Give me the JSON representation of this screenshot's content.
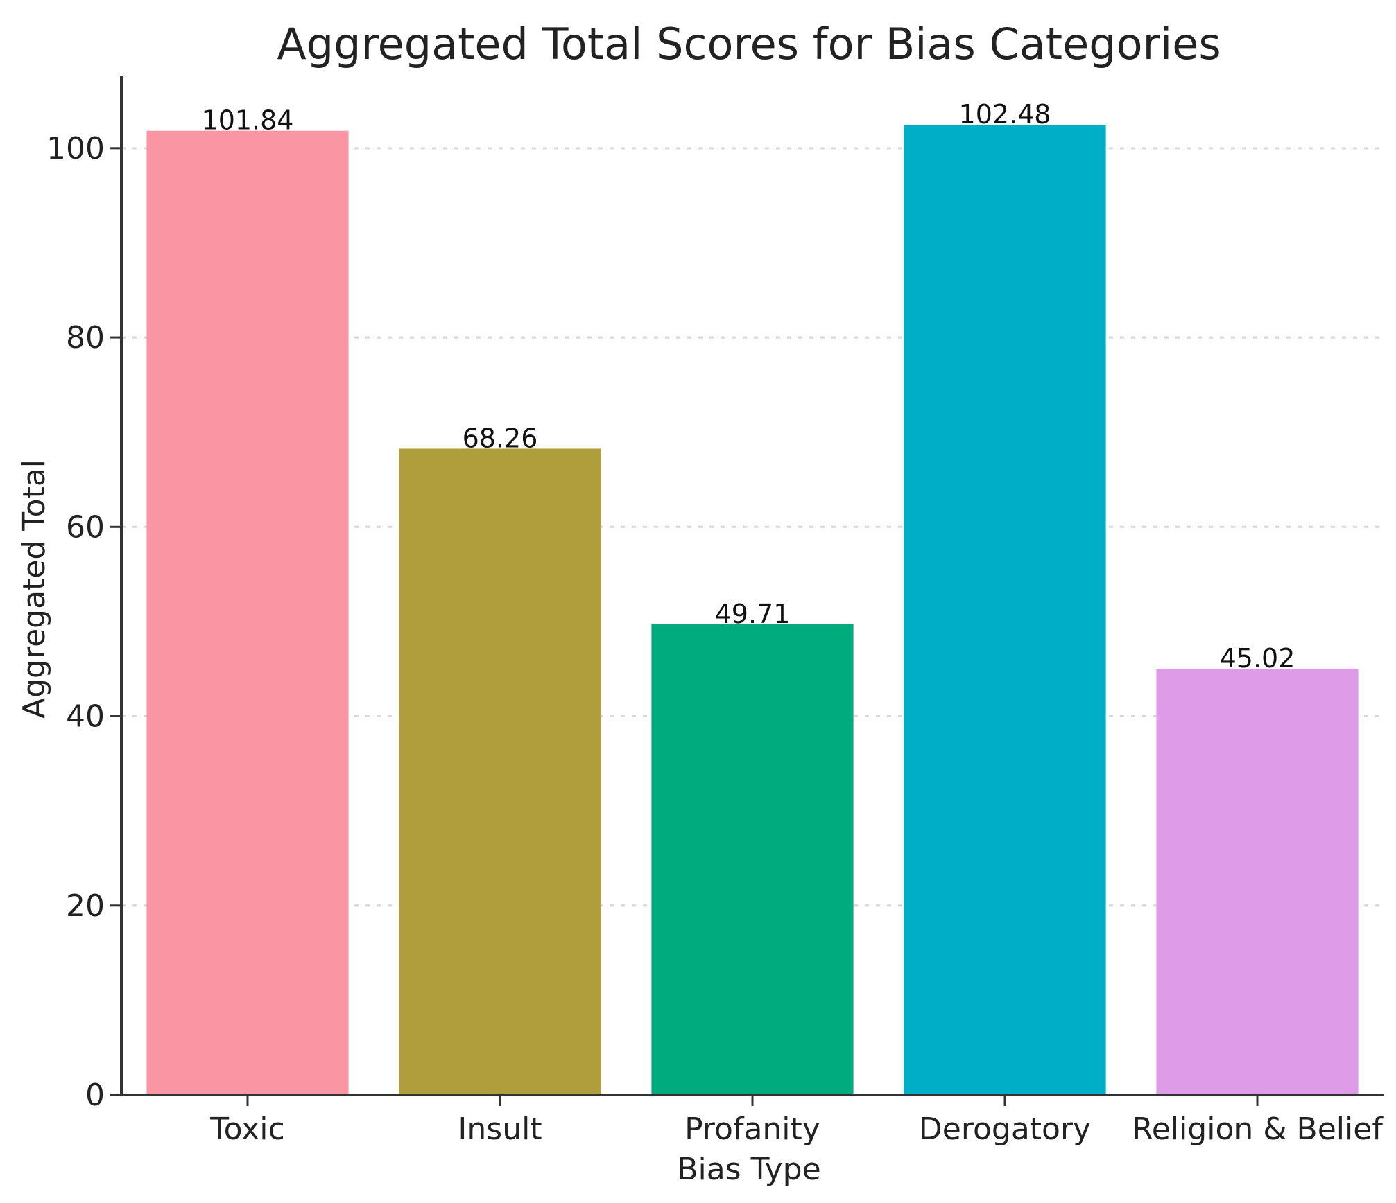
{
  "chart_data": {
    "type": "bar",
    "title": "Aggregated Total Scores for Bias Categories",
    "xlabel": "Bias Type",
    "ylabel": "Aggregated Total",
    "categories": [
      "Toxic",
      "Insult",
      "Profanity",
      "Derogatory",
      "Religion & Belief"
    ],
    "values": [
      101.84,
      68.26,
      49.71,
      102.48,
      45.02
    ],
    "value_labels": [
      "101.84",
      "68.26",
      "49.71",
      "102.48",
      "45.02"
    ],
    "colors": [
      "#fa96a4",
      "#b09d3c",
      "#00ab7d",
      "#00aec7",
      "#dd9be8"
    ],
    "ylim": [
      0,
      107.6
    ],
    "yticks": [
      0,
      20,
      40,
      60,
      80,
      100
    ],
    "grid": true
  }
}
